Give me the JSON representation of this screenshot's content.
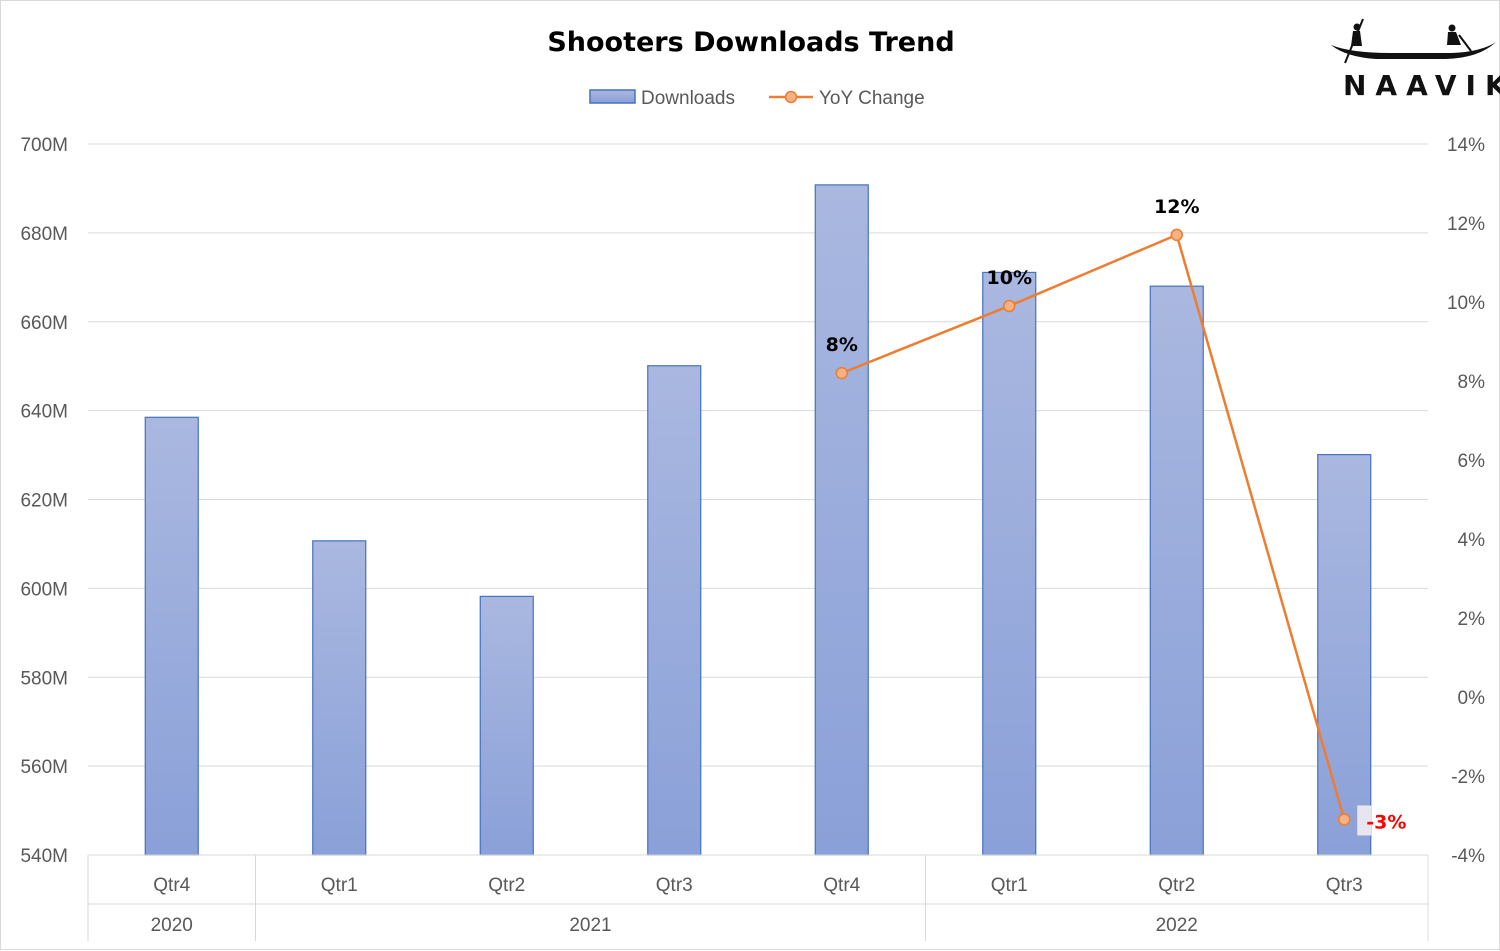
{
  "chart_data": {
    "type": "bar",
    "title": "Shooters Downloads Trend",
    "categories": [
      "Qtr4",
      "Qtr1",
      "Qtr2",
      "Qtr3",
      "Qtr4",
      "Qtr1",
      "Qtr2",
      "Qtr3"
    ],
    "groups": [
      {
        "label": "2020",
        "span": 1
      },
      {
        "label": "2021",
        "span": 4
      },
      {
        "label": "2022",
        "span": 3
      }
    ],
    "series": [
      {
        "name": "Downloads",
        "type": "bar",
        "axis": "left",
        "values": [
          638.5,
          610.7,
          598.2,
          650.1,
          690.8,
          671.1,
          668.0,
          630.1
        ],
        "color": "#8fa2d9",
        "border": "#4472c4"
      },
      {
        "name": "YoY Change",
        "type": "line",
        "axis": "right",
        "values": [
          null,
          null,
          null,
          null,
          8.2,
          9.9,
          11.7,
          -3.1
        ],
        "labels": [
          "",
          "",
          "",
          "",
          "8%",
          "10%",
          "12%",
          "-3%"
        ],
        "color": "#ed7d31"
      }
    ],
    "y_left": {
      "min": 540,
      "max": 700,
      "step": 20,
      "ticks": [
        "540M",
        "560M",
        "580M",
        "600M",
        "620M",
        "640M",
        "660M",
        "680M",
        "700M"
      ]
    },
    "y_right": {
      "min": -4,
      "max": 14,
      "step": 2,
      "ticks": [
        "-4%",
        "-2%",
        "0%",
        "2%",
        "4%",
        "6%",
        "8%",
        "10%",
        "12%",
        "14%"
      ]
    },
    "legend": {
      "position": "top"
    },
    "grid": true,
    "negative_label_color": "#ff0000"
  },
  "logo": {
    "text": "NAAVIK"
  }
}
